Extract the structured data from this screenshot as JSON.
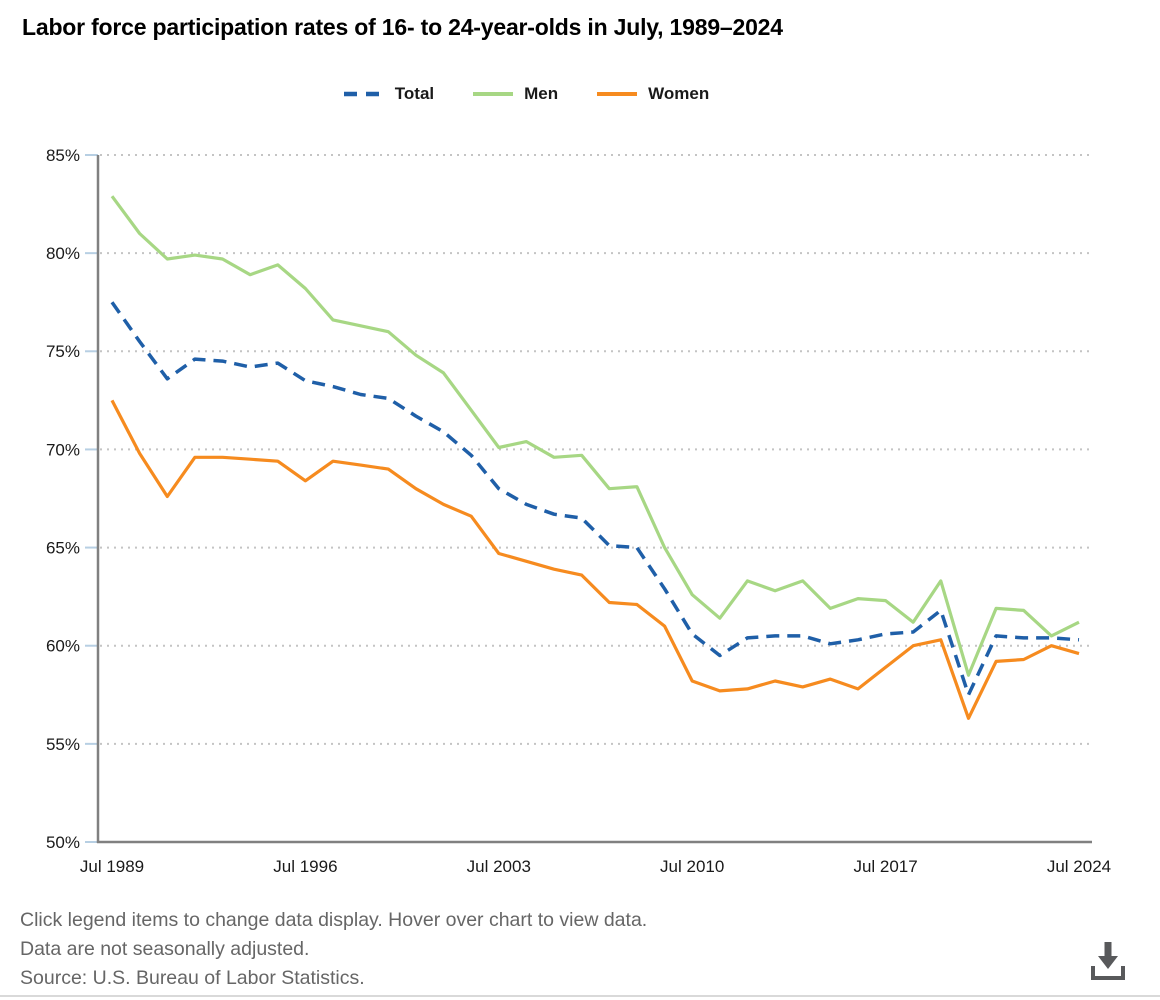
{
  "title": "Labor force participation rates of 16- to 24-year-olds in July, 1989–2024",
  "legend": [
    {
      "label": "Total",
      "color": "#1f5fa8",
      "dashed": true
    },
    {
      "label": "Men",
      "color": "#a7d784",
      "dashed": false
    },
    {
      "label": "Women",
      "color": "#f68b1f",
      "dashed": false
    }
  ],
  "chart_data": {
    "type": "line",
    "title": "Labor force participation rates of 16- to 24-year-olds in July, 1989–2024",
    "xlabel": "",
    "ylabel": "",
    "ylim": [
      50,
      85
    ],
    "grid": "dotted-horizontal",
    "legend_position": "top-center",
    "y_tick_labels": [
      "85%",
      "80%",
      "75%",
      "70%",
      "65%",
      "60%",
      "55%",
      "50%"
    ],
    "y_tick_values": [
      85,
      80,
      75,
      70,
      65,
      60,
      55,
      50
    ],
    "x_tick_labels": [
      "Jul 1989",
      "Jul 1996",
      "Jul 2003",
      "Jul 2010",
      "Jul 2017",
      "Jul 2024"
    ],
    "x_tick_years": [
      1989,
      1996,
      2003,
      2010,
      2017,
      2024
    ],
    "x": [
      1989,
      1990,
      1991,
      1992,
      1993,
      1994,
      1995,
      1996,
      1997,
      1998,
      1999,
      2000,
      2001,
      2002,
      2003,
      2004,
      2005,
      2006,
      2007,
      2008,
      2009,
      2010,
      2011,
      2012,
      2013,
      2014,
      2015,
      2016,
      2017,
      2018,
      2019,
      2020,
      2021,
      2022,
      2023,
      2024
    ],
    "series": [
      {
        "name": "Total",
        "color": "#1f5fa8",
        "dashed": true,
        "values": [
          77.5,
          75.5,
          73.6,
          74.6,
          74.5,
          74.2,
          74.4,
          73.5,
          73.2,
          72.8,
          72.6,
          71.7,
          70.9,
          69.7,
          68.0,
          67.2,
          66.7,
          66.5,
          65.1,
          65.0,
          62.9,
          60.6,
          59.5,
          60.4,
          60.5,
          60.5,
          60.1,
          60.3,
          60.6,
          60.7,
          61.8,
          57.5,
          60.5,
          60.4,
          60.4,
          60.3
        ]
      },
      {
        "name": "Men",
        "color": "#a7d784",
        "dashed": false,
        "values": [
          82.9,
          81.0,
          79.7,
          79.9,
          79.7,
          78.9,
          79.4,
          78.2,
          76.6,
          76.3,
          76.0,
          74.8,
          73.9,
          72.0,
          70.1,
          70.4,
          69.6,
          69.7,
          68.0,
          68.1,
          65.0,
          62.6,
          61.4,
          63.3,
          62.8,
          63.3,
          61.9,
          62.4,
          62.3,
          61.2,
          63.3,
          58.5,
          61.9,
          61.8,
          60.5,
          61.2
        ]
      },
      {
        "name": "Women",
        "color": "#f68b1f",
        "dashed": false,
        "values": [
          72.5,
          69.8,
          67.6,
          69.6,
          69.6,
          69.5,
          69.4,
          68.4,
          69.4,
          69.2,
          69.0,
          68.0,
          67.2,
          66.6,
          64.7,
          64.3,
          63.9,
          63.6,
          62.2,
          62.1,
          61.0,
          58.2,
          57.7,
          57.8,
          58.2,
          57.9,
          58.3,
          57.8,
          58.9,
          60.0,
          60.3,
          56.3,
          59.2,
          59.3,
          60.0,
          59.6
        ]
      }
    ]
  },
  "footer": {
    "line1": "Click legend items to change data display. Hover over chart to view data.",
    "line2": "Data are not seasonally adjusted.",
    "line3": "Source: U.S. Bureau of Labor Statistics."
  },
  "icons": {
    "download": "download-icon"
  },
  "colors": {
    "axis": "#808080",
    "gridline": "#c4c4c4",
    "tick": "#b7cfe3",
    "footer_text": "#666666",
    "icon": "#58595b"
  },
  "download_label": "Download chart data"
}
